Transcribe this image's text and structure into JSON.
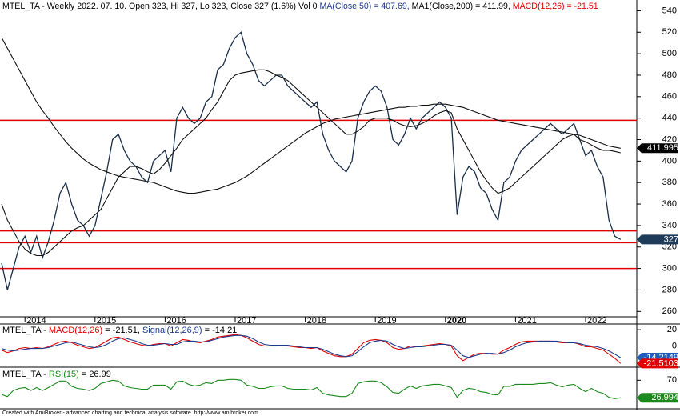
{
  "chart_data": [
    {
      "type": "line",
      "title_parts": [
        {
          "text": "MTEL_TA - Weekly 2022. 07. 10. Open 323, Hi 327, Lo 323, Close 327 (1.6%) Vol 0 ",
          "color": "#000000"
        },
        {
          "text": "MA(Close,50) = 407.69, ",
          "color": "#1f3b8c"
        },
        {
          "text": "MA1(Close,200) = 411.99, ",
          "color": "#000000"
        },
        {
          "text": "MACD(12,26) = -21.51",
          "color": "#e00000"
        }
      ],
      "categories": [
        null,
        null,
        null,
        null,
        "2014",
        null,
        null,
        null,
        null,
        null,
        null,
        null,
        null,
        null,
        null,
        null,
        "2015",
        null,
        null,
        null,
        null,
        null,
        null,
        null,
        null,
        null,
        null,
        null,
        "2016",
        null,
        null,
        null,
        null,
        null,
        null,
        null,
        null,
        null,
        null,
        null,
        "2017",
        null,
        null,
        null,
        null,
        null,
        null,
        null,
        null,
        null,
        null,
        null,
        "2018",
        null,
        null,
        null,
        null,
        null,
        null,
        null,
        null,
        null,
        null,
        null,
        "2019",
        null,
        null,
        null,
        null,
        null,
        null,
        null,
        null,
        null,
        null,
        null,
        "2020",
        null,
        null,
        null,
        null,
        null,
        null,
        null,
        null,
        null,
        null,
        null,
        "2021",
        null,
        null,
        null,
        null,
        null,
        null,
        null,
        null,
        null,
        null,
        null,
        "2022",
        null,
        null,
        null,
        null,
        null,
        null
      ],
      "bold_category": "2020",
      "series": [
        {
          "color": "#1a2e4a",
          "values": [
            305,
            280,
            300,
            320,
            330,
            315,
            330,
            310,
            325,
            345,
            370,
            380,
            360,
            345,
            340,
            330,
            340,
            365,
            390,
            420,
            425,
            410,
            400,
            395,
            385,
            380,
            400,
            405,
            410,
            390,
            440,
            450,
            440,
            435,
            440,
            455,
            460,
            485,
            490,
            505,
            515,
            520,
            500,
            490,
            475,
            470,
            475,
            480,
            480,
            470,
            465,
            460,
            455,
            450,
            455,
            425,
            410,
            400,
            395,
            390,
            400,
            440,
            455,
            465,
            470,
            465,
            450,
            420,
            415,
            425,
            440,
            430,
            440,
            445,
            450,
            455,
            450,
            440,
            350,
            385,
            395,
            390,
            375,
            370,
            355,
            345,
            380,
            385,
            400,
            410,
            415,
            420,
            425,
            430,
            435,
            430,
            425,
            430,
            435,
            420,
            405,
            410,
            395,
            385,
            345,
            330,
            327
          ]
        },
        {
          "color": "#101010",
          "values": [
            360,
            345,
            335,
            325,
            318,
            314,
            312,
            312,
            315,
            320,
            325,
            330,
            335,
            338,
            340,
            345,
            350,
            355,
            365,
            375,
            385,
            390,
            395,
            395,
            393,
            390,
            388,
            392,
            398,
            405,
            412,
            420,
            425,
            430,
            435,
            440,
            448,
            455,
            465,
            475,
            480,
            482,
            483,
            484,
            485,
            485,
            483,
            480,
            478,
            475,
            470,
            465,
            460,
            455,
            450,
            445,
            440,
            435,
            430,
            425,
            425,
            428,
            432,
            438,
            440,
            440,
            440,
            438,
            435,
            433,
            432,
            433,
            435,
            438,
            442,
            445,
            447,
            445,
            430,
            420,
            410,
            400,
            390,
            382,
            375,
            370,
            372,
            375,
            380,
            385,
            390,
            395,
            400,
            405,
            410,
            415,
            420,
            423,
            425,
            420,
            418,
            415,
            412,
            410,
            410,
            409,
            407.69
          ]
        },
        {
          "color": "#101010",
          "values": [
            515,
            505,
            495,
            485,
            475,
            465,
            455,
            447,
            440,
            432,
            425,
            418,
            412,
            407,
            402,
            398,
            395,
            392,
            390,
            388,
            386,
            385,
            384,
            383,
            382,
            381,
            380,
            378,
            376,
            374,
            372,
            371,
            370,
            370,
            371,
            372,
            373,
            374,
            376,
            378,
            380,
            383,
            386,
            390,
            394,
            398,
            402,
            406,
            410,
            414,
            418,
            422,
            426,
            429,
            432,
            435,
            437,
            439,
            440,
            441,
            442,
            443,
            444,
            445,
            446,
            447,
            448,
            449,
            450,
            450,
            451,
            451,
            452,
            452,
            453,
            453,
            453,
            452,
            451,
            450,
            448,
            446,
            444,
            442,
            440,
            438,
            437,
            436,
            435,
            434,
            433,
            432,
            431,
            430,
            429,
            428,
            427,
            426,
            425,
            424,
            422,
            420,
            418,
            416,
            414,
            413,
            411.99
          ]
        }
      ],
      "hlines": [
        438,
        335,
        324,
        300
      ],
      "hline_color": "#e00000",
      "last_labels": [
        {
          "value": 411.995,
          "label": "411.995",
          "color": "#000000"
        },
        {
          "value": 327,
          "label": "327",
          "color": "#1f3b5a"
        }
      ],
      "ylim": [
        255,
        550
      ],
      "yticks": [
        260,
        280,
        300,
        320,
        340,
        360,
        380,
        400,
        420,
        440,
        460,
        480,
        500,
        520,
        540
      ],
      "grid": false
    },
    {
      "type": "line",
      "title_parts": [
        {
          "text": "MTEL_TA - ",
          "color": "#000000"
        },
        {
          "text": "MACD(12,26)",
          "color": "#e00000"
        },
        {
          "text": " = -21.51, ",
          "color": "#000000"
        },
        {
          "text": "Signal(12,26,9)",
          "color": "#1f3b8c"
        },
        {
          "text": " = -14.21",
          "color": "#000000"
        }
      ],
      "series": [
        {
          "color": "#e00000",
          "values": [
            -5,
            -8,
            -6,
            -3,
            -2,
            -3,
            -2,
            -3,
            -1,
            2,
            5,
            6,
            4,
            1,
            -1,
            -3,
            -2,
            2,
            6,
            10,
            11,
            8,
            5,
            3,
            1,
            0,
            2,
            3,
            3,
            0,
            4,
            8,
            7,
            5,
            4,
            6,
            8,
            11,
            12,
            13,
            14,
            13,
            10,
            6,
            2,
            0,
            0,
            1,
            1,
            0,
            -1,
            -2,
            -2,
            -3,
            -2,
            -6,
            -9,
            -12,
            -13,
            -13,
            -10,
            -3,
            4,
            7,
            8,
            7,
            4,
            -2,
            -4,
            -3,
            0,
            -1,
            0,
            1,
            2,
            3,
            2,
            0,
            -12,
            -18,
            -14,
            -10,
            -9,
            -9,
            -10,
            -10,
            -5,
            -2,
            2,
            5,
            6,
            6,
            6,
            6,
            6,
            5,
            4,
            4,
            4,
            2,
            -1,
            -1,
            -3,
            -5,
            -10,
            -15,
            -21.51
          ]
        },
        {
          "color": "#1f3b8c",
          "values": [
            -3,
            -5,
            -6,
            -5,
            -4,
            -3,
            -3,
            -3,
            -2,
            0,
            2,
            4,
            5,
            3,
            1,
            -1,
            -2,
            -1,
            2,
            6,
            9,
            10,
            8,
            6,
            3,
            1,
            1,
            2,
            3,
            2,
            2,
            5,
            6,
            6,
            5,
            5,
            7,
            9,
            11,
            12,
            13,
            13,
            12,
            9,
            5,
            2,
            1,
            1,
            1,
            1,
            0,
            -1,
            -2,
            -2,
            -2,
            -4,
            -7,
            -10,
            -12,
            -13,
            -12,
            -7,
            -1,
            4,
            6,
            7,
            6,
            2,
            -1,
            -3,
            -2,
            -1,
            -1,
            0,
            1,
            2,
            2,
            1,
            -5,
            -12,
            -14,
            -12,
            -10,
            -9,
            -9,
            -10,
            -8,
            -5,
            -1,
            2,
            4,
            5,
            6,
            6,
            6,
            6,
            5,
            4,
            4,
            3,
            1,
            0,
            -1,
            -3,
            -6,
            -10,
            -14.21
          ]
        }
      ],
      "last_labels": [
        {
          "value": -14.2149,
          "label": "-14.2149",
          "color": "#1f5fbf"
        },
        {
          "value": -21.5103,
          "label": "-21.5103",
          "color": "#e00000"
        }
      ],
      "ylim": [
        -26,
        27
      ],
      "yticks": [
        0,
        20
      ]
    },
    {
      "type": "line",
      "title_parts": [
        {
          "text": "MTEL_TA - ",
          "color": "#000000"
        },
        {
          "text": "RSI(15)",
          "color": "#1a8a1a"
        },
        {
          "text": " = 26.99",
          "color": "#000000"
        }
      ],
      "series": [
        {
          "color": "#1a8a1a",
          "values": [
            35,
            30,
            45,
            50,
            52,
            45,
            52,
            45,
            52,
            60,
            68,
            68,
            55,
            50,
            48,
            45,
            50,
            62,
            66,
            70,
            68,
            56,
            52,
            50,
            48,
            48,
            58,
            58,
            58,
            48,
            66,
            68,
            60,
            56,
            58,
            64,
            62,
            70,
            70,
            72,
            72,
            70,
            58,
            55,
            50,
            50,
            54,
            56,
            56,
            50,
            48,
            48,
            48,
            46,
            52,
            38,
            34,
            32,
            30,
            30,
            38,
            62,
            66,
            68,
            68,
            64,
            54,
            40,
            38,
            48,
            56,
            50,
            56,
            58,
            60,
            60,
            56,
            52,
            28,
            45,
            50,
            48,
            42,
            40,
            35,
            34,
            55,
            55,
            60,
            60,
            60,
            60,
            62,
            62,
            64,
            58,
            54,
            58,
            60,
            50,
            42,
            50,
            42,
            38,
            28,
            25,
            26.99
          ]
        }
      ],
      "last_labels": [
        {
          "value": 26.994,
          "label": "26.994",
          "color": "#1a8a1a"
        }
      ],
      "ylim": [
        0,
        100
      ],
      "yticks": [
        70
      ]
    }
  ],
  "footer": "Created with AmiBroker - advanced charting and technical analysis software. http://www.amibroker.com"
}
